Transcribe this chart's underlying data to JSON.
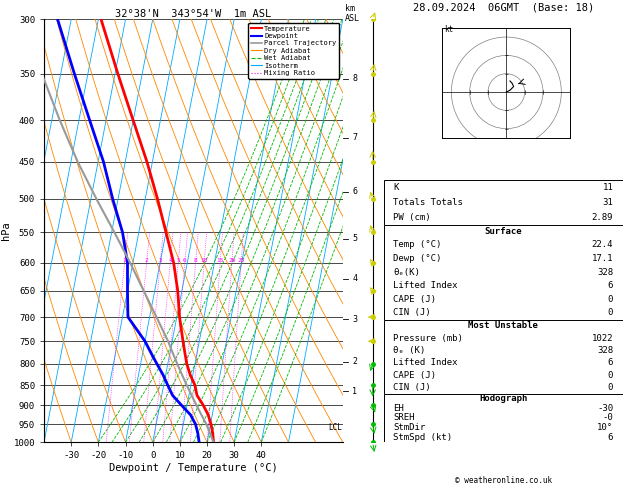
{
  "title_left": "32°38'N  343°54'W  1m ASL",
  "title_right": "28.09.2024  06GMT  (Base: 18)",
  "ylabel": "hPa",
  "xlabel": "Dewpoint / Temperature (°C)",
  "pressure_ticks": [
    300,
    350,
    400,
    450,
    500,
    550,
    600,
    650,
    700,
    750,
    800,
    850,
    900,
    950,
    1000
  ],
  "temp_ticks": [
    -30,
    -20,
    -10,
    0,
    10,
    20,
    30,
    40
  ],
  "isotherm_color": "#00AAFF",
  "dry_adiabat_color": "#FF8800",
  "wet_adiabat_color": "#00BB00",
  "mixing_ratio_color": "#FF00FF",
  "temperature_color": "#FF0000",
  "dewpoint_color": "#0000FF",
  "parcel_color": "#999999",
  "km_ticks": [
    1,
    2,
    3,
    4,
    5,
    6,
    7,
    8
  ],
  "km_pressures": [
    865,
    795,
    705,
    628,
    560,
    490,
    420,
    355
  ],
  "mixing_ratios": [
    1,
    2,
    3,
    4,
    5,
    6,
    8,
    10,
    15,
    20,
    25
  ],
  "temperature_profile": {
    "pressure": [
      1000,
      975,
      950,
      925,
      900,
      875,
      850,
      825,
      800,
      775,
      750,
      700,
      650,
      600,
      550,
      500,
      450,
      400,
      350,
      300
    ],
    "temp": [
      22.4,
      21.5,
      20.2,
      18.5,
      16.0,
      13.0,
      11.5,
      9.0,
      7.0,
      5.5,
      4.0,
      1.0,
      -1.5,
      -5.0,
      -10.0,
      -15.5,
      -22.0,
      -30.0,
      -39.0,
      -49.0
    ]
  },
  "dewpoint_profile": {
    "pressure": [
      1000,
      975,
      950,
      925,
      900,
      875,
      850,
      825,
      800,
      775,
      750,
      700,
      650,
      600,
      550,
      500,
      450,
      400,
      350,
      300
    ],
    "temp": [
      17.1,
      16.0,
      14.5,
      12.0,
      8.0,
      4.0,
      1.5,
      -1.0,
      -4.0,
      -7.0,
      -10.0,
      -18.0,
      -20.0,
      -22.0,
      -26.0,
      -32.0,
      -38.0,
      -46.0,
      -55.0,
      -65.0
    ]
  },
  "parcel_profile": {
    "pressure": [
      1000,
      975,
      950,
      925,
      900,
      875,
      850,
      825,
      800,
      775,
      750,
      700,
      650,
      600,
      550,
      500,
      450,
      400,
      350,
      300
    ],
    "temp": [
      22.4,
      20.5,
      18.5,
      16.0,
      13.5,
      11.0,
      8.5,
      6.0,
      3.5,
      1.0,
      -1.5,
      -7.5,
      -14.0,
      -21.0,
      -29.0,
      -38.0,
      -47.5,
      -57.0,
      -67.0,
      -78.0
    ]
  },
  "lcl_pressure": 958,
  "info_K": 11,
  "info_TT": 31,
  "info_PW": 2.89,
  "surf_temp": 22.4,
  "surf_dewp": 17.1,
  "surf_theta_e": 328,
  "surf_li": 6,
  "surf_cape": 0,
  "surf_cin": 0,
  "mu_pressure": 1022,
  "mu_theta_e": 328,
  "mu_li": 6,
  "mu_cape": 0,
  "mu_cin": 0,
  "hodo_eh": -30,
  "hodo_sreh": "-0",
  "hodo_stmdir": "10°",
  "hodo_stmspd": 6,
  "copyright": "© weatheronline.co.uk",
  "wind_pressures": [
    1000,
    950,
    900,
    850,
    800,
    750,
    700,
    650,
    600,
    550,
    500,
    450,
    400,
    350,
    300
  ],
  "wind_u": [
    1,
    1,
    1,
    0,
    -1,
    -1,
    -2,
    -2,
    -2,
    -1,
    -1,
    0,
    1,
    1,
    2
  ],
  "wind_v": [
    2,
    2,
    1,
    1,
    1,
    0,
    0,
    -1,
    -1,
    -1,
    -1,
    -1,
    -2,
    -2,
    -2
  ],
  "wind_colors": [
    "#00BB00",
    "#00BB00",
    "#00BB00",
    "#00BB00",
    "#00BB00",
    "#CCCC00",
    "#CCCC00",
    "#CCCC00",
    "#CCCC00",
    "#CCCC00",
    "#CCCC00",
    "#CCCC00",
    "#CCCC00",
    "#CCCC00",
    "#CCCC00"
  ]
}
